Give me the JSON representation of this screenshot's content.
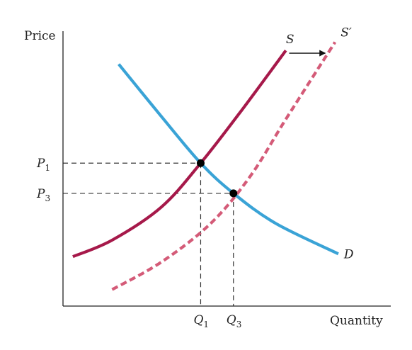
{
  "chart_data": {
    "type": "line",
    "title": "",
    "xlabel": "Quantity",
    "ylabel": "Price",
    "xlim": [
      0,
      10
    ],
    "ylim": [
      0,
      10
    ],
    "grid": false,
    "legend": "none",
    "series": [
      {
        "name": "S",
        "label_main": "S",
        "label_prime": "",
        "style": "solid",
        "color": "#a6194a",
        "points": [
          [
            0.3,
            1.8
          ],
          [
            1.5,
            2.4
          ],
          [
            3.0,
            3.6
          ],
          [
            4.2,
            5.2
          ],
          [
            5.5,
            7.2
          ],
          [
            6.8,
            9.3
          ]
        ]
      },
      {
        "name": "S′",
        "label_main": "S",
        "label_prime": "′",
        "style": "dashed",
        "color": "#d45b78",
        "points": [
          [
            1.5,
            0.6
          ],
          [
            3.0,
            1.6
          ],
          [
            4.5,
            3.0
          ],
          [
            5.7,
            4.7
          ],
          [
            6.8,
            6.8
          ],
          [
            8.3,
            9.6
          ]
        ]
      },
      {
        "name": "D",
        "label_main": "D",
        "label_prime": "",
        "style": "solid",
        "color": "#3aa3d6",
        "points": [
          [
            1.7,
            8.8
          ],
          [
            3.0,
            6.9
          ],
          [
            4.2,
            5.2
          ],
          [
            5.2,
            4.1
          ],
          [
            6.5,
            3.0
          ],
          [
            8.4,
            1.9
          ]
        ]
      }
    ],
    "equilibria": [
      {
        "x": 4.2,
        "y": 5.2
      },
      {
        "x": 5.2,
        "y": 4.1
      }
    ],
    "y_ticks": [
      {
        "value": 5.2,
        "main": "P",
        "sub": "1"
      },
      {
        "value": 4.1,
        "main": "P",
        "sub": "3"
      }
    ],
    "x_ticks": [
      {
        "value": 4.2,
        "main": "Q",
        "sub": "1"
      },
      {
        "value": 5.2,
        "main": "Q",
        "sub": "3"
      }
    ],
    "shift_arrow": {
      "from": [
        6.9,
        9.2
      ],
      "to": [
        8.0,
        9.2
      ]
    }
  }
}
